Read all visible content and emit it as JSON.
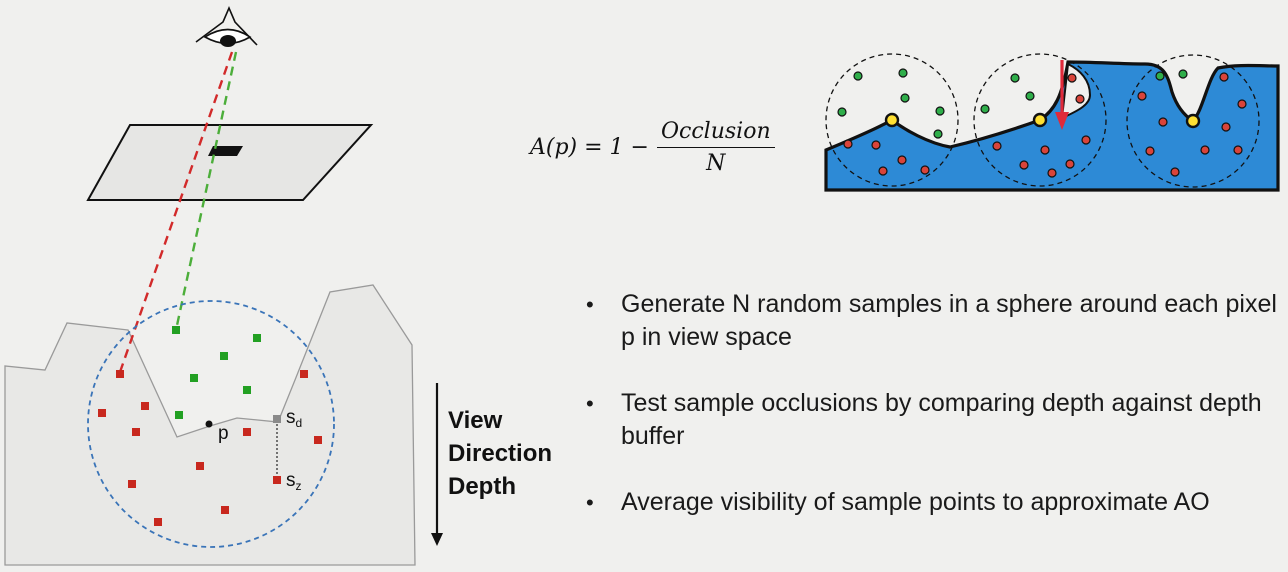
{
  "diagram": {
    "labels": {
      "p": "p",
      "s": "s",
      "sub_d": "d",
      "sub_z": "z"
    }
  },
  "formula": {
    "lhs": "A(p) = 1 −",
    "numerator": "Occlusion",
    "denominator": "N"
  },
  "view_direction": {
    "line1": "View",
    "line2": "Direction",
    "line3": "Depth"
  },
  "bullets": [
    "Generate N random samples in a sphere around each pixel p in view space",
    "Test sample occlusions by comparing depth against depth buffer",
    "Average visibility of sample points to approximate AO"
  ],
  "colors": {
    "background": "#f0f0ee",
    "occluded_sample": "#c8281e",
    "visible_sample": "#22a022",
    "surface_blue": "#2d8ad6",
    "red_ray": "#d22a2a",
    "green_ray": "#4cae3a",
    "sphere_outline": "#3a74b8"
  }
}
